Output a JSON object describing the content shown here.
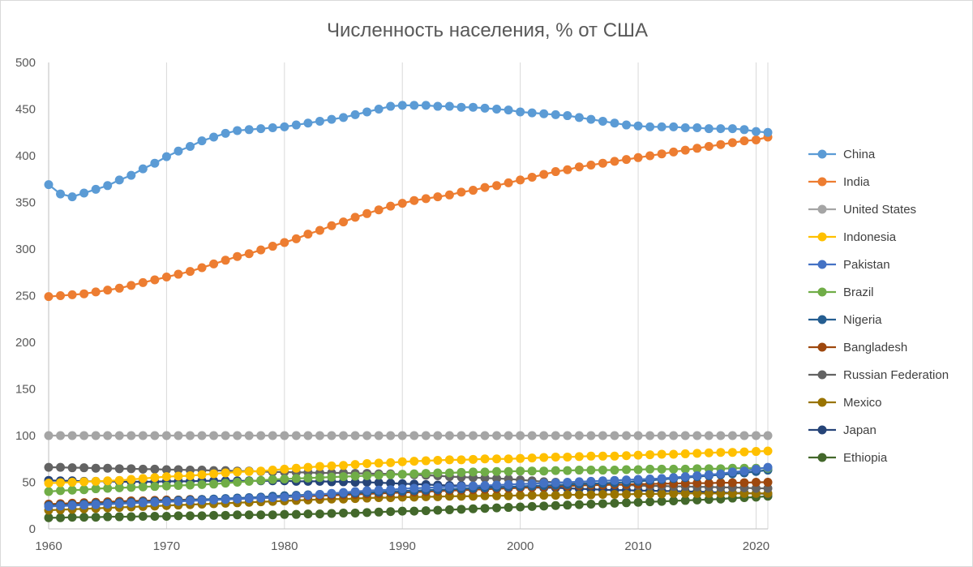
{
  "chart_data": {
    "type": "line",
    "title": "Численность населения, % от США",
    "xlabel": "",
    "ylabel": "",
    "xlim": [
      1960,
      2021
    ],
    "ylim": [
      0,
      500
    ],
    "x_ticks": [
      1960,
      1970,
      1980,
      1990,
      2000,
      2010,
      2020
    ],
    "y_ticks": [
      0,
      50,
      100,
      150,
      200,
      250,
      300,
      350,
      400,
      450,
      500
    ],
    "grid": "vertical",
    "legend": "right",
    "markers": true,
    "x": [
      1960,
      1961,
      1962,
      1963,
      1964,
      1965,
      1966,
      1967,
      1968,
      1969,
      1970,
      1971,
      1972,
      1973,
      1974,
      1975,
      1976,
      1977,
      1978,
      1979,
      1980,
      1981,
      1982,
      1983,
      1984,
      1985,
      1986,
      1987,
      1988,
      1989,
      1990,
      1991,
      1992,
      1993,
      1994,
      1995,
      1996,
      1997,
      1998,
      1999,
      2000,
      2001,
      2002,
      2003,
      2004,
      2005,
      2006,
      2007,
      2008,
      2009,
      2010,
      2011,
      2012,
      2013,
      2014,
      2015,
      2016,
      2017,
      2018,
      2019,
      2020,
      2021
    ],
    "series": [
      {
        "name": "China",
        "color": "#5B9BD5",
        "values": [
          369,
          359,
          356,
          360,
          364,
          368,
          374,
          379,
          386,
          392,
          399,
          405,
          410,
          416,
          420,
          424,
          427,
          428,
          429,
          430,
          431,
          433,
          435,
          437,
          439,
          441,
          444,
          447,
          450,
          453,
          454,
          454,
          454,
          453,
          453,
          452,
          452,
          451,
          450,
          449,
          447,
          446,
          445,
          444,
          443,
          441,
          439,
          437,
          435,
          433,
          432,
          431,
          431,
          431,
          430,
          430,
          429,
          429,
          429,
          428,
          426,
          425
        ]
      },
      {
        "name": "India",
        "color": "#ED7D31",
        "values": [
          249,
          250,
          251,
          252,
          254,
          256,
          258,
          261,
          264,
          267,
          270,
          273,
          276,
          280,
          284,
          288,
          292,
          295,
          299,
          303,
          307,
          311,
          316,
          320,
          325,
          329,
          334,
          338,
          342,
          346,
          349,
          352,
          354,
          356,
          358,
          361,
          363,
          366,
          368,
          371,
          374,
          377,
          380,
          383,
          385,
          388,
          390,
          392,
          394,
          396,
          398,
          400,
          402,
          404,
          406,
          408,
          410,
          412,
          414,
          416,
          417,
          420
        ]
      },
      {
        "name": "United States",
        "color": "#A5A5A5",
        "values": [
          100,
          100,
          100,
          100,
          100,
          100,
          100,
          100,
          100,
          100,
          100,
          100,
          100,
          100,
          100,
          100,
          100,
          100,
          100,
          100,
          100,
          100,
          100,
          100,
          100,
          100,
          100,
          100,
          100,
          100,
          100,
          100,
          100,
          100,
          100,
          100,
          100,
          100,
          100,
          100,
          100,
          100,
          100,
          100,
          100,
          100,
          100,
          100,
          100,
          100,
          100,
          100,
          100,
          100,
          100,
          100,
          100,
          100,
          100,
          100,
          100,
          100
        ]
      },
      {
        "name": "Indonesia",
        "color": "#FFC000",
        "values": [
          49,
          49.5,
          50,
          50.5,
          51,
          51.5,
          52,
          53,
          54,
          55,
          56,
          56.5,
          57,
          58,
          59,
          60,
          61,
          61.5,
          62,
          63,
          64,
          65,
          66,
          67,
          67.5,
          68,
          69,
          70,
          70.5,
          71,
          72,
          72.5,
          73,
          73.5,
          74,
          74,
          74.5,
          75,
          75,
          75,
          75.5,
          76,
          76.5,
          77,
          77,
          77.5,
          78,
          78,
          78,
          78.5,
          79,
          79.5,
          80,
          80,
          80.5,
          81,
          81.5,
          82,
          82,
          82.5,
          83,
          83.5
        ]
      },
      {
        "name": "Pakistan",
        "color": "#4472C4",
        "values": [
          24,
          24.5,
          25,
          25.5,
          26,
          26.5,
          27,
          27.5,
          28,
          28.5,
          29,
          29.5,
          30,
          30.5,
          31,
          31.5,
          32,
          32.5,
          33,
          33.5,
          34,
          35,
          36,
          37,
          38,
          39,
          40,
          41,
          41.5,
          42,
          43,
          43.5,
          44,
          44.5,
          45,
          45.5,
          46,
          46.5,
          47,
          47.5,
          48,
          48.5,
          49,
          49.5,
          50,
          50.5,
          51,
          51.5,
          52,
          52.5,
          53,
          53.5,
          54,
          55,
          56,
          57,
          58,
          59,
          61,
          62,
          64,
          66
        ]
      },
      {
        "name": "Brazil",
        "color": "#70AD47",
        "values": [
          40,
          41,
          41.5,
          42,
          43,
          43.5,
          44,
          44.5,
          45,
          45.5,
          46,
          46.5,
          47,
          47.5,
          48,
          49,
          50,
          51,
          52,
          53,
          53.5,
          54,
          54.5,
          55,
          55.5,
          56,
          56.5,
          57,
          57.5,
          58,
          58.5,
          59,
          59.5,
          60,
          60,
          60.5,
          61,
          61,
          61.5,
          61.5,
          62,
          62,
          62,
          62.5,
          62.5,
          63,
          63,
          63,
          63,
          63.5,
          63.5,
          64,
          64,
          64,
          64,
          64.5,
          64.5,
          64.5,
          65,
          65,
          65,
          65
        ]
      },
      {
        "name": "Nigeria",
        "color": "#255E91",
        "values": [
          25,
          25.5,
          26,
          26.5,
          27,
          27.5,
          28,
          28.5,
          29,
          29.5,
          30,
          30.5,
          31,
          31.5,
          32,
          32.5,
          33,
          33.5,
          34,
          35,
          35.5,
          36,
          36.5,
          37,
          37.5,
          38,
          38.5,
          39,
          39.5,
          40,
          40.5,
          41,
          41.5,
          42,
          42.5,
          43,
          43.5,
          44,
          44.5,
          45,
          45.5,
          46,
          46.5,
          47,
          47.5,
          48,
          48.5,
          49,
          49.5,
          50,
          51,
          52,
          53,
          54,
          55,
          56,
          57,
          58,
          59,
          60,
          61.5,
          63
        ]
      },
      {
        "name": "Bangladesh",
        "color": "#9E480E",
        "values": [
          26.5,
          27,
          27.5,
          28,
          28.5,
          29,
          29.5,
          30,
          30,
          30.5,
          31,
          31,
          31.5,
          31.5,
          31.5,
          32,
          32,
          32.5,
          33,
          33.5,
          34,
          34.5,
          35,
          35.5,
          36,
          36.5,
          37,
          37.5,
          38,
          38.5,
          39,
          39.5,
          40,
          40.5,
          41,
          41.5,
          42,
          42.5,
          43,
          43.5,
          44,
          44.5,
          45,
          45.5,
          46,
          46.5,
          47,
          47,
          47.5,
          47.5,
          48,
          48,
          48.5,
          48.5,
          49,
          49,
          49,
          49.5,
          49.5,
          49.5,
          50,
          50
        ]
      },
      {
        "name": "Russian Federation",
        "color": "#636363",
        "values": [
          66,
          66,
          65.5,
          65.5,
          65,
          65,
          64.5,
          64.5,
          64,
          64,
          63.5,
          63.5,
          63,
          63,
          62.5,
          62.5,
          62,
          62,
          61.5,
          61,
          61,
          60.5,
          60.5,
          60,
          60,
          60,
          59.5,
          59.5,
          59,
          59,
          58.5,
          58,
          57.5,
          57,
          56,
          55.5,
          55,
          54.5,
          54,
          53.5,
          52.5,
          51.5,
          50.5,
          50,
          49.5,
          49,
          48.5,
          48,
          47.5,
          47,
          46.5,
          46,
          46,
          45.5,
          45.5,
          45,
          45,
          44.5,
          44.5,
          44,
          43.5,
          43.5
        ]
      },
      {
        "name": "Mexico",
        "color": "#997300",
        "values": [
          20,
          20.5,
          21,
          21.5,
          22,
          22.5,
          23,
          23.5,
          24,
          24.5,
          25,
          25.5,
          26,
          26.5,
          27,
          27.5,
          28,
          28.5,
          29,
          29.5,
          30,
          30.5,
          31,
          31.5,
          32,
          32,
          32.5,
          33,
          33.5,
          33.5,
          34,
          34,
          34.5,
          34.5,
          35,
          35,
          35,
          35.5,
          35.5,
          35.5,
          36,
          36,
          36,
          36,
          36.5,
          36.5,
          36.5,
          37,
          37,
          37,
          37.5,
          37.5,
          37.5,
          38,
          38,
          38,
          38,
          38,
          38,
          38,
          38,
          38
        ]
      },
      {
        "name": "Japan",
        "color": "#264478",
        "values": [
          52,
          51.5,
          51.5,
          51,
          51,
          51,
          50.5,
          50.5,
          50.5,
          50.5,
          51,
          51,
          51,
          51.5,
          51.5,
          51.5,
          51.5,
          51.5,
          51.5,
          51.5,
          51.5,
          51,
          51,
          51,
          50.5,
          50.5,
          50,
          50,
          49.5,
          49,
          48.5,
          48,
          47.5,
          47,
          46.5,
          46.5,
          46,
          45.5,
          45,
          45,
          44.5,
          44.5,
          44,
          44,
          43.5,
          43,
          42.5,
          42,
          41.5,
          41.5,
          41,
          41,
          40.5,
          40.5,
          40,
          40,
          39.5,
          39,
          38.5,
          38.5,
          38,
          37.5
        ]
      },
      {
        "name": "Ethiopia",
        "color": "#43682B",
        "values": [
          12,
          12,
          12.5,
          12.5,
          12.5,
          13,
          13,
          13,
          13.5,
          13.5,
          13.5,
          14,
          14,
          14,
          14.5,
          14.5,
          15,
          15,
          15,
          15,
          15.5,
          15.5,
          16,
          16,
          16.5,
          17,
          17,
          17.5,
          18,
          18.5,
          19,
          19,
          19.5,
          20,
          20.5,
          21,
          21.5,
          22,
          22.5,
          23,
          23.5,
          24,
          24.5,
          25,
          25.5,
          26,
          26.5,
          27,
          27.5,
          28,
          28.5,
          29,
          29.5,
          30,
          30.5,
          31,
          31.5,
          32,
          33,
          33.5,
          34,
          35
        ]
      }
    ]
  }
}
